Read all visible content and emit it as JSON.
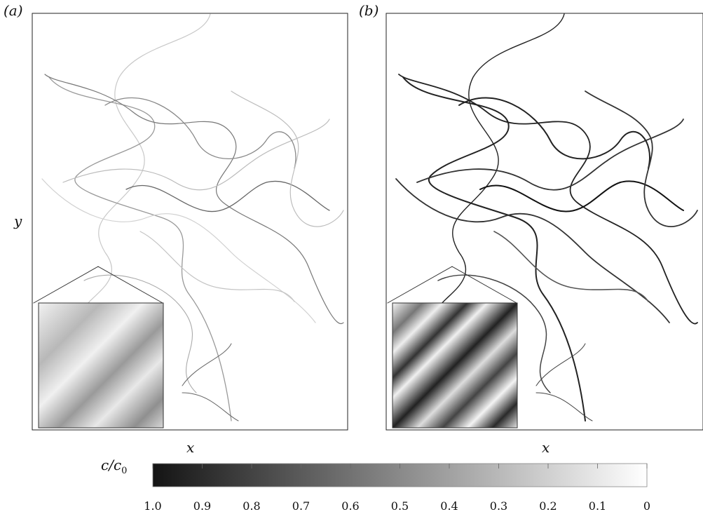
{
  "panels": [
    {
      "label": "(a)",
      "xlabel": "x"
    },
    {
      "label": "(b)",
      "xlabel": "x"
    }
  ],
  "shared_ylabel": "y",
  "colorbar": {
    "label_main": "c/c",
    "label_sub": "0",
    "ticks": [
      "1.0",
      "0.9",
      "0.8",
      "0.7",
      "0.6",
      "0.5",
      "0.4",
      "0.3",
      "0.2",
      "0.1",
      "0"
    ],
    "dark_color": "#141414",
    "light_color": "#ffffff"
  }
}
